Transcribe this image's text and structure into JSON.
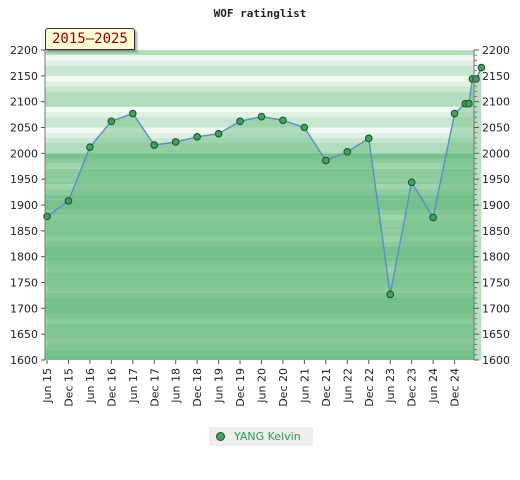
{
  "chart_data": {
    "type": "area",
    "title": "WOF ratinglist",
    "period_badge": "2015–2025",
    "y_ticks": [
      1600,
      1650,
      1700,
      1750,
      1800,
      1850,
      1900,
      1950,
      2000,
      2050,
      2100,
      2150,
      2200
    ],
    "ylim": [
      1600,
      2200
    ],
    "x_tick_labels": [
      "Jun 15",
      "Dec 15",
      "Jun 16",
      "Dec 16",
      "Jun 17",
      "Dec 17",
      "Jun 18",
      "Dec 18",
      "Jun 19",
      "Dec 19",
      "Jun 20",
      "Dec 20",
      "Jun 21",
      "Dec 21",
      "Jun 22",
      "Dec 22",
      "Jun 23",
      "Dec 23",
      "Jun 24",
      "Dec 24"
    ],
    "series": [
      {
        "name": "YANG Kelvin",
        "color": "#3ea35d",
        "line_color": "#5b8ec8",
        "x": [
          0,
          1,
          2,
          3,
          4,
          5,
          6,
          7,
          8,
          9,
          10,
          11,
          12,
          13,
          14,
          15,
          16,
          17,
          18,
          19,
          19.5,
          19.67,
          19.83,
          20.0
        ],
        "values": [
          1878,
          1908,
          2012,
          2062,
          2077,
          2016,
          2022,
          2032,
          2038,
          2062,
          2071,
          2064,
          2050,
          1986,
          2003,
          2029,
          1727,
          1944,
          1876,
          2077,
          2096,
          2096,
          2144,
          2144
        ]
      }
    ],
    "extra_points": [
      {
        "x": 20.25,
        "y": 2166
      }
    ],
    "grid": true,
    "legend_position": "bottom-center"
  }
}
